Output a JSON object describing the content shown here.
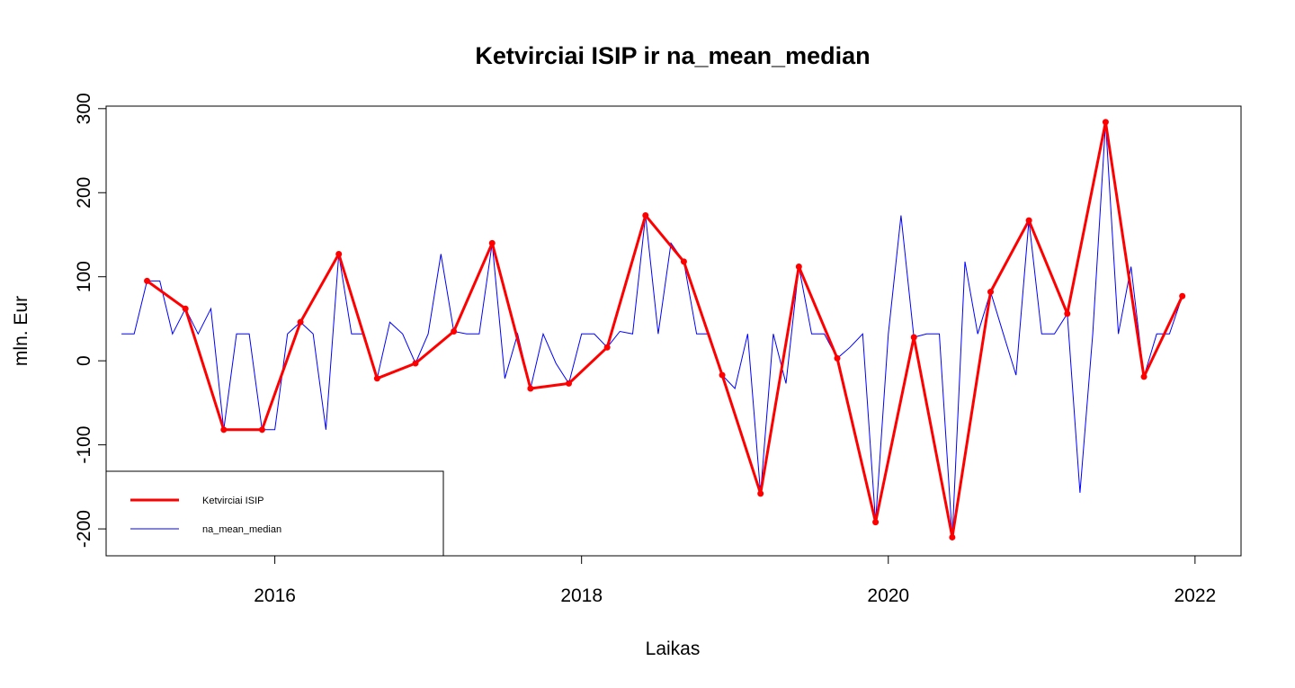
{
  "chart_data": {
    "type": "line",
    "title": "Ketvirciai ISIP ir na_mean_median",
    "xlabel": "Laikas",
    "ylabel": "mln. Eur",
    "xlim": [
      2014.9,
      2022.3
    ],
    "ylim": [
      -232,
      303
    ],
    "x_ticks": [
      2016,
      2018,
      2020,
      2022
    ],
    "x_tick_labels": [
      "2016",
      "2018",
      "2020",
      "2022"
    ],
    "y_ticks": [
      -200,
      -100,
      0,
      100,
      200,
      300
    ],
    "y_tick_labels": [
      "-200",
      "-100",
      "0",
      "100",
      "200",
      "300"
    ],
    "grid": false,
    "legend_position": "bottom-left",
    "series": [
      {
        "name": "na_mean_median",
        "color": "#0000ff",
        "style": "thin-line",
        "x": [
          2015.0,
          2015.083,
          2015.167,
          2015.25,
          2015.333,
          2015.417,
          2015.5,
          2015.583,
          2015.667,
          2015.75,
          2015.833,
          2015.917,
          2016.0,
          2016.083,
          2016.167,
          2016.25,
          2016.333,
          2016.417,
          2016.5,
          2016.583,
          2016.667,
          2016.75,
          2016.833,
          2016.917,
          2017.0,
          2017.083,
          2017.167,
          2017.25,
          2017.333,
          2017.417,
          2017.5,
          2017.583,
          2017.667,
          2017.75,
          2017.833,
          2017.917,
          2018.0,
          2018.083,
          2018.167,
          2018.25,
          2018.333,
          2018.417,
          2018.5,
          2018.583,
          2018.667,
          2018.75,
          2018.833,
          2018.917,
          2019.0,
          2019.083,
          2019.167,
          2019.25,
          2019.333,
          2019.417,
          2019.5,
          2019.583,
          2019.667,
          2019.75,
          2019.833,
          2019.917,
          2020.0,
          2020.083,
          2020.167,
          2020.25,
          2020.333,
          2020.417,
          2020.5,
          2020.583,
          2020.667,
          2020.75,
          2020.833,
          2020.917,
          2021.0,
          2021.083,
          2021.167,
          2021.25,
          2021.333,
          2021.417,
          2021.5,
          2021.583,
          2021.667,
          2021.75,
          2021.833,
          2021.917
        ],
        "values": [
          32,
          32,
          95,
          95,
          32,
          62,
          32,
          62,
          -82,
          32,
          32,
          -82,
          -82,
          32,
          46,
          32,
          -82,
          127,
          32,
          32,
          -21,
          46,
          32,
          -3,
          32,
          127,
          35,
          32,
          32,
          140,
          -21,
          32,
          -33,
          32,
          -3,
          -27,
          32,
          32,
          16,
          35,
          32,
          173,
          32,
          140,
          118,
          32,
          32,
          -17,
          -33,
          32,
          -158,
          32,
          -27,
          112,
          32,
          32,
          3,
          16,
          32,
          -192,
          32,
          173,
          28,
          32,
          32,
          -210,
          118,
          32,
          82,
          32,
          -17,
          167,
          32,
          32,
          56,
          -157,
          32,
          284,
          32,
          112,
          -19,
          32,
          32,
          77
        ]
      },
      {
        "name": "Ketvirciai ISIP",
        "color": "#ff0000",
        "style": "thick-line-points",
        "x": [
          2015.167,
          2015.417,
          2015.667,
          2015.917,
          2016.167,
          2016.417,
          2016.667,
          2016.917,
          2017.167,
          2017.417,
          2017.667,
          2017.917,
          2018.167,
          2018.417,
          2018.667,
          2018.917,
          2019.167,
          2019.417,
          2019.667,
          2019.917,
          2020.167,
          2020.417,
          2020.667,
          2020.917,
          2021.167,
          2021.417,
          2021.667,
          2021.917
        ],
        "values": [
          95,
          62,
          -82,
          -82,
          46,
          127,
          -21,
          -3,
          35,
          140,
          -33,
          -27,
          16,
          173,
          118,
          -17,
          -158,
          112,
          3,
          -192,
          28,
          -210,
          82,
          167,
          56,
          284,
          -19,
          77
        ]
      }
    ]
  }
}
